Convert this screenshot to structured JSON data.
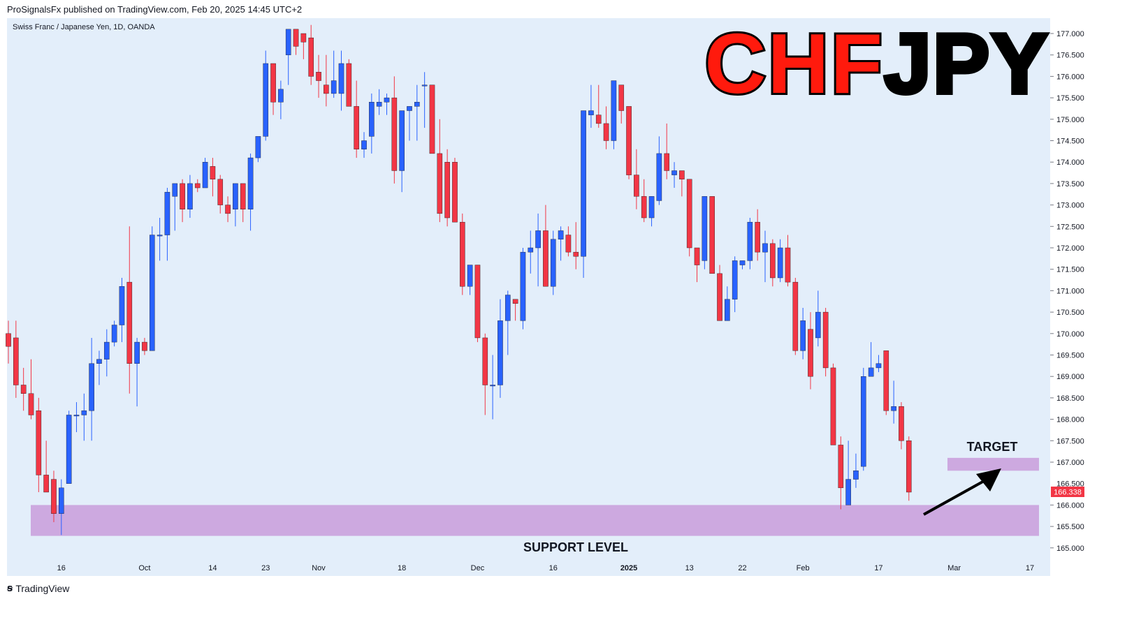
{
  "header": {
    "text": "ProSignalsFx published on TradingView.com, Feb 20, 2025 14:45 UTC+2"
  },
  "chart_title": "Swiss Franc / Japanese Yen, 1D, OANDA",
  "big_title": {
    "part1": "CHF",
    "part2": "JPY",
    "color1": "#ff1a0d",
    "color2": "#000000"
  },
  "annotations": {
    "target": "TARGET",
    "support": "SUPPORT LEVEL",
    "zone_color": "#cda9e0"
  },
  "price_badge": "166.338",
  "footer": {
    "brand": "TradingView"
  },
  "colors": {
    "up": "#2962ff",
    "down": "#f23645",
    "background": "#e3eefa"
  },
  "chart_data": {
    "type": "candlestick",
    "title": "Swiss Franc / Japanese Yen, 1D, OANDA",
    "ylim": [
      164.8,
      177.3
    ],
    "y_ticks": [
      "177.000",
      "176.500",
      "176.000",
      "175.500",
      "175.000",
      "174.500",
      "174.000",
      "173.500",
      "173.000",
      "172.500",
      "172.000",
      "171.500",
      "171.000",
      "170.500",
      "170.000",
      "169.500",
      "169.000",
      "168.500",
      "168.000",
      "167.500",
      "167.000",
      "166.500",
      "166.000",
      "165.500",
      "165.000"
    ],
    "x_ticks": [
      {
        "label": "16",
        "index": 7,
        "bold": false
      },
      {
        "label": "Oct",
        "index": 18,
        "bold": false
      },
      {
        "label": "14",
        "index": 27,
        "bold": false
      },
      {
        "label": "23",
        "index": 34,
        "bold": false
      },
      {
        "label": "Nov",
        "index": 41,
        "bold": false
      },
      {
        "label": "18",
        "index": 52,
        "bold": false
      },
      {
        "label": "Dec",
        "index": 62,
        "bold": false
      },
      {
        "label": "16",
        "index": 72,
        "bold": false
      },
      {
        "label": "2025",
        "index": 82,
        "bold": true
      },
      {
        "label": "13",
        "index": 90,
        "bold": false
      },
      {
        "label": "22",
        "index": 97,
        "bold": false
      },
      {
        "label": "Feb",
        "index": 105,
        "bold": false
      },
      {
        "label": "17",
        "index": 115,
        "bold": false
      },
      {
        "label": "Mar",
        "index": 125,
        "bold": false
      },
      {
        "label": "17",
        "index": 135,
        "bold": false
      }
    ],
    "candles": [
      [
        170.0,
        170.3,
        169.3,
        169.7
      ],
      [
        169.9,
        170.3,
        168.5,
        168.8
      ],
      [
        168.8,
        169.2,
        168.2,
        168.6
      ],
      [
        168.6,
        169.4,
        168.0,
        168.1
      ],
      [
        168.2,
        168.5,
        166.3,
        166.7
      ],
      [
        166.7,
        167.5,
        166.3,
        166.3
      ],
      [
        166.6,
        166.8,
        165.6,
        165.8
      ],
      [
        165.8,
        166.6,
        165.3,
        166.4
      ],
      [
        166.5,
        168.2,
        166.5,
        168.1
      ],
      [
        168.1,
        168.4,
        167.7,
        168.1
      ],
      [
        168.1,
        168.6,
        167.5,
        168.2
      ],
      [
        168.2,
        169.9,
        167.5,
        169.3
      ],
      [
        169.3,
        169.6,
        168.8,
        169.4
      ],
      [
        169.4,
        170.1,
        169.0,
        169.8
      ],
      [
        169.8,
        170.3,
        169.7,
        170.2
      ],
      [
        170.2,
        171.3,
        169.8,
        171.1
      ],
      [
        171.2,
        172.5,
        168.6,
        169.3
      ],
      [
        169.3,
        169.9,
        168.3,
        169.8
      ],
      [
        169.8,
        169.9,
        169.5,
        169.6
      ],
      [
        169.6,
        172.5,
        169.6,
        172.3
      ],
      [
        172.3,
        172.7,
        171.7,
        172.3
      ],
      [
        172.3,
        173.4,
        171.7,
        173.3
      ],
      [
        173.2,
        173.5,
        172.4,
        173.5
      ],
      [
        173.5,
        173.6,
        172.6,
        172.9
      ],
      [
        172.9,
        173.7,
        172.7,
        173.5
      ],
      [
        173.5,
        173.6,
        173.3,
        173.4
      ],
      [
        173.4,
        174.1,
        173.4,
        174.0
      ],
      [
        173.9,
        174.1,
        173.2,
        173.6
      ],
      [
        173.6,
        173.7,
        172.8,
        173.0
      ],
      [
        173.0,
        173.2,
        172.6,
        172.8
      ],
      [
        172.9,
        173.5,
        172.5,
        173.5
      ],
      [
        173.5,
        173.5,
        172.6,
        172.9
      ],
      [
        172.9,
        174.2,
        172.4,
        174.1
      ],
      [
        174.1,
        174.6,
        174.0,
        174.6
      ],
      [
        174.6,
        176.6,
        174.5,
        176.3
      ],
      [
        176.3,
        176.3,
        175.1,
        175.4
      ],
      [
        175.4,
        175.9,
        175.0,
        175.7
      ],
      [
        176.5,
        177.1,
        175.8,
        177.1
      ],
      [
        177.1,
        177.1,
        176.5,
        176.7
      ],
      [
        177.0,
        177.0,
        176.4,
        176.8
      ],
      [
        176.9,
        177.2,
        175.8,
        176.0
      ],
      [
        176.1,
        176.5,
        175.5,
        175.9
      ],
      [
        175.8,
        176.5,
        175.3,
        175.6
      ],
      [
        175.6,
        176.6,
        175.5,
        175.9
      ],
      [
        175.6,
        176.6,
        175.2,
        176.3
      ],
      [
        176.3,
        176.4,
        175.3,
        175.3
      ],
      [
        175.3,
        175.9,
        174.1,
        174.3
      ],
      [
        174.3,
        174.7,
        174.1,
        174.5
      ],
      [
        174.6,
        175.6,
        174.2,
        175.4
      ],
      [
        175.3,
        175.7,
        175.1,
        175.4
      ],
      [
        175.4,
        175.6,
        175.1,
        175.5
      ],
      [
        175.5,
        176.0,
        173.5,
        173.8
      ],
      [
        173.8,
        175.1,
        173.3,
        175.2
      ],
      [
        175.2,
        175.3,
        174.5,
        175.3
      ],
      [
        175.3,
        175.8,
        174.5,
        175.4
      ],
      [
        175.8,
        176.1,
        174.8,
        175.8
      ],
      [
        175.8,
        175.8,
        174.3,
        174.2
      ],
      [
        174.2,
        175.0,
        172.6,
        172.8
      ],
      [
        174.0,
        174.3,
        172.5,
        172.7
      ],
      [
        174.0,
        174.1,
        172.6,
        172.6
      ],
      [
        172.6,
        172.8,
        170.9,
        171.1
      ],
      [
        171.1,
        171.6,
        170.9,
        171.6
      ],
      [
        171.6,
        171.6,
        169.8,
        169.9
      ],
      [
        169.9,
        170.0,
        168.1,
        168.8
      ],
      [
        168.8,
        169.5,
        168.0,
        168.8
      ],
      [
        168.8,
        170.8,
        168.5,
        170.3
      ],
      [
        170.3,
        171.0,
        169.5,
        170.9
      ],
      [
        170.8,
        170.8,
        170.3,
        170.7
      ],
      [
        170.3,
        172.0,
        170.1,
        171.9
      ],
      [
        171.9,
        172.4,
        171.4,
        172.0
      ],
      [
        172.0,
        172.8,
        171.1,
        172.4
      ],
      [
        172.4,
        173.0,
        171.1,
        171.1
      ],
      [
        171.1,
        172.4,
        170.9,
        172.2
      ],
      [
        172.2,
        172.5,
        171.7,
        172.4
      ],
      [
        172.3,
        172.5,
        171.8,
        171.9
      ],
      [
        171.9,
        172.6,
        171.5,
        171.8
      ],
      [
        171.8,
        175.2,
        171.3,
        175.2
      ],
      [
        175.1,
        175.8,
        174.8,
        175.2
      ],
      [
        175.1,
        175.8,
        174.8,
        174.9
      ],
      [
        174.9,
        175.3,
        174.3,
        174.5
      ],
      [
        174.5,
        175.8,
        174.3,
        175.9
      ],
      [
        175.8,
        175.8,
        174.9,
        175.2
      ],
      [
        175.3,
        175.3,
        173.6,
        173.7
      ],
      [
        173.7,
        174.3,
        172.9,
        173.2
      ],
      [
        173.2,
        173.6,
        172.6,
        172.7
      ],
      [
        172.7,
        173.2,
        172.5,
        173.2
      ],
      [
        173.1,
        174.6,
        173.0,
        174.2
      ],
      [
        174.2,
        174.9,
        173.6,
        173.8
      ],
      [
        173.7,
        174.0,
        173.4,
        173.8
      ],
      [
        173.8,
        173.8,
        173.2,
        173.6
      ],
      [
        173.6,
        173.6,
        171.8,
        172.0
      ],
      [
        172.0,
        172.0,
        171.2,
        171.6
      ],
      [
        171.7,
        173.2,
        171.5,
        173.2
      ],
      [
        173.2,
        173.2,
        171.4,
        171.4
      ],
      [
        171.4,
        171.6,
        170.3,
        170.3
      ],
      [
        170.3,
        171.1,
        170.3,
        170.8
      ],
      [
        170.8,
        171.8,
        170.5,
        171.7
      ],
      [
        171.6,
        171.7,
        171.5,
        171.7
      ],
      [
        171.7,
        172.7,
        171.5,
        172.6
      ],
      [
        172.6,
        172.9,
        171.7,
        171.9
      ],
      [
        171.9,
        172.4,
        171.2,
        172.1
      ],
      [
        172.1,
        172.2,
        171.1,
        171.3
      ],
      [
        171.3,
        172.2,
        171.2,
        172.0
      ],
      [
        172.0,
        172.3,
        171.1,
        171.2
      ],
      [
        171.2,
        171.3,
        169.5,
        169.6
      ],
      [
        169.6,
        170.6,
        169.4,
        170.3
      ],
      [
        170.1,
        170.5,
        168.7,
        169.0
      ],
      [
        169.9,
        171.0,
        169.7,
        170.5
      ],
      [
        170.5,
        170.6,
        169.0,
        169.2
      ],
      [
        169.2,
        169.3,
        167.5,
        167.4
      ],
      [
        167.4,
        167.6,
        165.9,
        166.4
      ],
      [
        166.0,
        167.5,
        166.1,
        166.6
      ],
      [
        166.6,
        167.2,
        166.4,
        166.8
      ],
      [
        166.9,
        169.2,
        166.8,
        169.0
      ],
      [
        169.0,
        169.8,
        169.0,
        169.2
      ],
      [
        169.2,
        169.5,
        169.1,
        169.3
      ],
      [
        169.6,
        169.6,
        168.1,
        168.2
      ],
      [
        168.2,
        168.9,
        167.9,
        168.3
      ],
      [
        168.3,
        168.4,
        167.3,
        167.5
      ],
      [
        167.5,
        167.6,
        166.1,
        166.3
      ]
    ]
  }
}
